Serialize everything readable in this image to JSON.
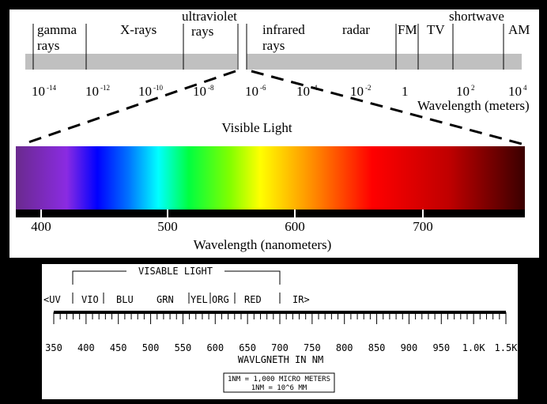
{
  "spectrum": {
    "bands": [
      {
        "lines": [
          "gamma",
          "rays"
        ]
      },
      {
        "lines": [
          "X-rays"
        ]
      },
      {
        "lines": [
          "ultraviolet",
          "rays"
        ]
      },
      {
        "lines": [
          "infrared",
          "rays"
        ]
      },
      {
        "lines": [
          "radar"
        ]
      },
      {
        "lines": [
          "FM"
        ]
      },
      {
        "lines": [
          "TV"
        ]
      },
      {
        "lines": [
          "shortwave"
        ]
      },
      {
        "lines": [
          "AM"
        ]
      }
    ],
    "scale": [
      {
        "base": "10",
        "exp": "-14"
      },
      {
        "base": "10",
        "exp": "-12"
      },
      {
        "base": "10",
        "exp": "-10"
      },
      {
        "base": "10",
        "exp": "-8"
      },
      {
        "base": "10",
        "exp": "-6"
      },
      {
        "base": "10",
        "exp": "-4"
      },
      {
        "base": "10",
        "exp": "-2"
      },
      {
        "base": "1"
      },
      {
        "base": "10",
        "exp": "2"
      },
      {
        "base": "10",
        "exp": "4"
      }
    ],
    "scale_title": "Wavelength (meters)",
    "visible_title": "Visible Light",
    "nm_labels": [
      "400",
      "500",
      "600",
      "700"
    ],
    "nm_title": "Wavelength (nanometers)"
  },
  "ruler": {
    "bracket_title": "VISABLE LIGHT",
    "colors": [
      "<UV",
      "VIO",
      "BLU",
      "GRN",
      "YEL",
      "ORG",
      "RED",
      "IR>"
    ],
    "labels": [
      "350",
      "400",
      "450",
      "500",
      "550",
      "600",
      "650",
      "700",
      "750",
      "800",
      "850",
      "900",
      "950",
      "1.0K",
      "1.5K"
    ],
    "title": "WAVLGNETH IN NM",
    "notes": [
      "1NM = 1,000 MICRO METERS",
      "1NM = 10^6 MM"
    ]
  }
}
